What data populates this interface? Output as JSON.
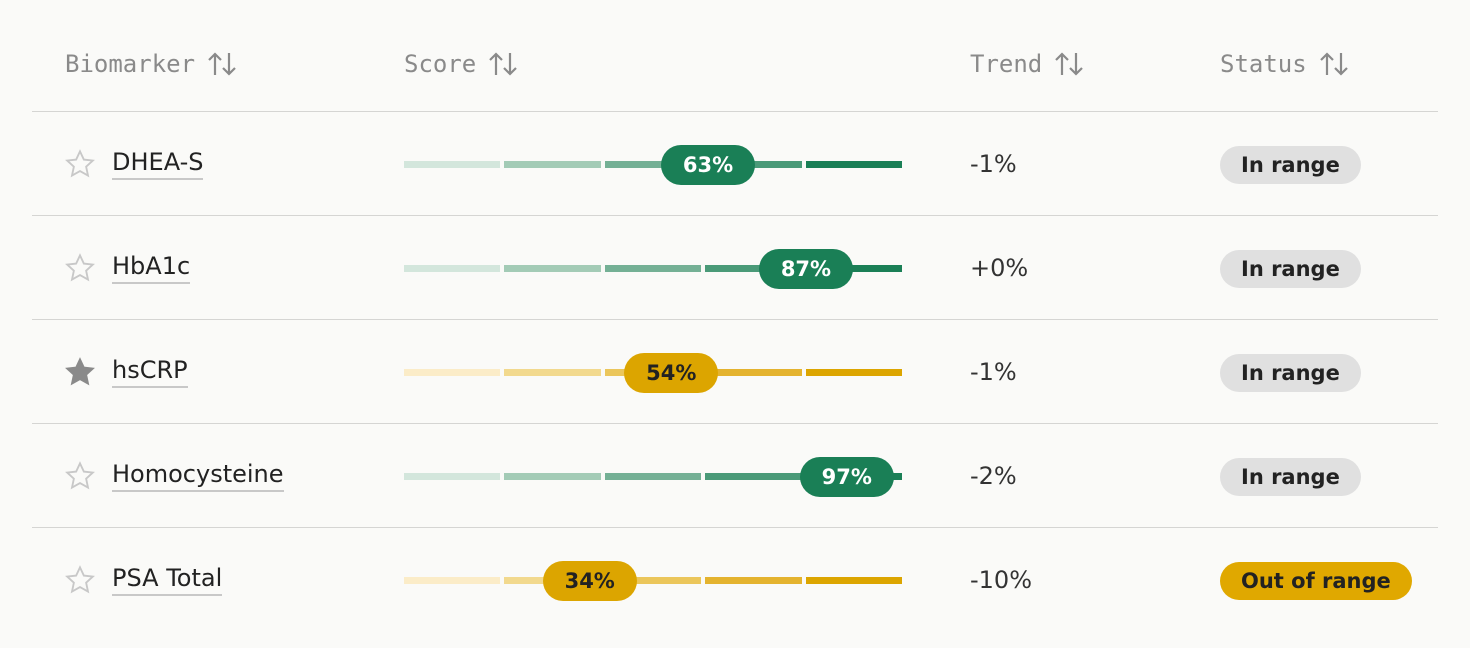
{
  "header": {
    "columns": [
      "Biomarker",
      "Score",
      "Trend",
      "Status"
    ]
  },
  "table": {
    "rows": [
      {
        "name": "DHEA-S",
        "starred": false,
        "score": {
          "value": 63,
          "label": "63%"
        },
        "score_color": "green",
        "trend": "-1%",
        "status": "In range",
        "status_color": "gray"
      },
      {
        "name": "HbA1c",
        "starred": false,
        "score": {
          "value": 87,
          "label": "87%"
        },
        "score_color": "green",
        "trend": "+0%",
        "status": "In range",
        "status_color": "gray"
      },
      {
        "name": "hsCRP",
        "starred": true,
        "score": {
          "value": 54,
          "label": "54%"
        },
        "score_color": "yellow",
        "trend": "-1%",
        "status": "In range",
        "status_color": "gray"
      },
      {
        "name": "Homocysteine",
        "starred": false,
        "score": {
          "value": 97,
          "label": "97%"
        },
        "score_color": "green",
        "trend": "-2%",
        "status": "In range",
        "status_color": "gray"
      },
      {
        "name": "PSA Total",
        "starred": false,
        "score": {
          "value": 34,
          "label": "34%"
        },
        "score_color": "yellow",
        "trend": "-10%",
        "status": "Out of range",
        "status_color": "yellow"
      }
    ]
  }
}
